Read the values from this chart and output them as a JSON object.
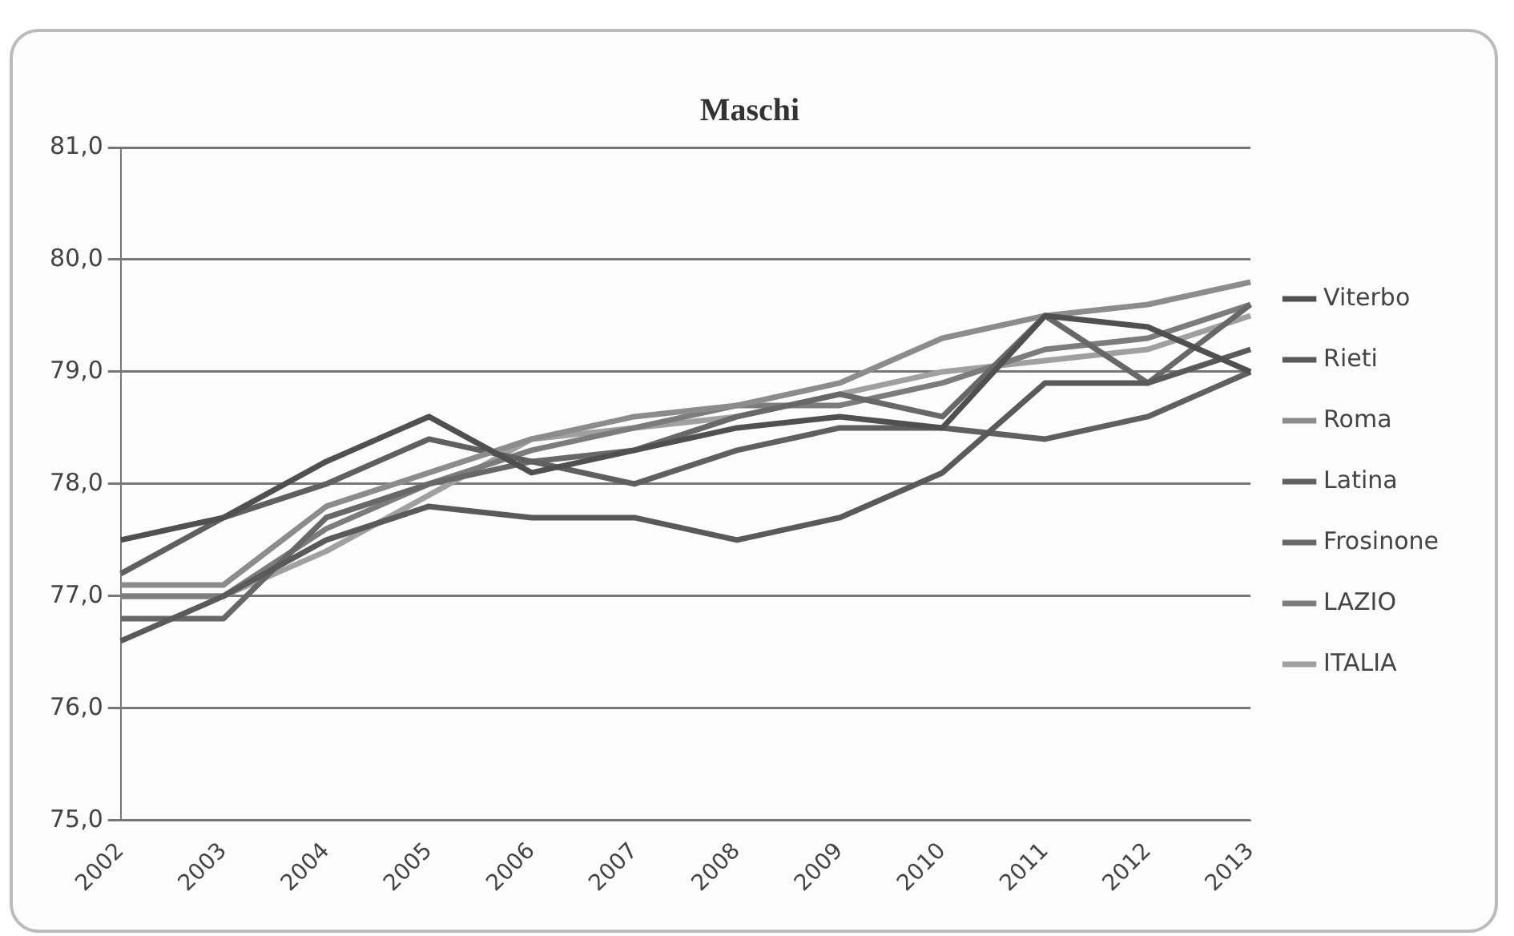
{
  "chart_data": {
    "type": "line",
    "title": "Maschi",
    "categories": [
      "2002",
      "2003",
      "2004",
      "2005",
      "2006",
      "2007",
      "2008",
      "2009",
      "2010",
      "2011",
      "2012",
      "2013"
    ],
    "series": [
      {
        "name": "Viterbo",
        "color": "#505050",
        "values": [
          77.5,
          77.7,
          78.2,
          78.6,
          78.1,
          78.3,
          78.5,
          78.6,
          78.5,
          79.5,
          79.4,
          79.0
        ]
      },
      {
        "name": "Rieti",
        "color": "#5a5a5a",
        "values": [
          76.6,
          77.0,
          77.5,
          77.8,
          77.7,
          77.7,
          77.5,
          77.7,
          78.1,
          78.9,
          78.9,
          79.2
        ]
      },
      {
        "name": "Roma",
        "color": "#8c8c8c",
        "values": [
          77.1,
          77.1,
          77.8,
          78.1,
          78.4,
          78.6,
          78.7,
          78.9,
          79.3,
          79.5,
          79.6,
          79.8
        ]
      },
      {
        "name": "Latina",
        "color": "#606060",
        "values": [
          77.2,
          77.7,
          78.0,
          78.4,
          78.2,
          78.0,
          78.3,
          78.5,
          78.5,
          78.4,
          78.6,
          79.0
        ]
      },
      {
        "name": "Frosinone",
        "color": "#686868",
        "values": [
          76.8,
          76.8,
          77.7,
          78.0,
          78.2,
          78.3,
          78.6,
          78.8,
          78.6,
          79.5,
          78.9,
          79.6
        ]
      },
      {
        "name": "LAZIO",
        "color": "#7c7c7c",
        "values": [
          77.0,
          77.0,
          77.6,
          78.0,
          78.3,
          78.5,
          78.7,
          78.7,
          78.9,
          79.2,
          79.3,
          79.6
        ]
      },
      {
        "name": "ITALIA",
        "color": "#a0a0a0",
        "values": [
          77.0,
          77.0,
          77.4,
          77.9,
          78.4,
          78.5,
          78.6,
          78.8,
          79.0,
          79.1,
          79.2,
          79.5
        ]
      }
    ],
    "ylim": [
      75,
      81
    ],
    "yticks": [
      {
        "value": 75,
        "label": "75,0"
      },
      {
        "value": 76,
        "label": "76,0"
      },
      {
        "value": 77,
        "label": "77,0"
      },
      {
        "value": 78,
        "label": "78,0"
      },
      {
        "value": 79,
        "label": "79,0"
      },
      {
        "value": 80,
        "label": "80,0"
      },
      {
        "value": 81,
        "label": "81,0"
      }
    ],
    "grid": "y",
    "legend": "right",
    "marker": "none",
    "line_style": "solid"
  }
}
